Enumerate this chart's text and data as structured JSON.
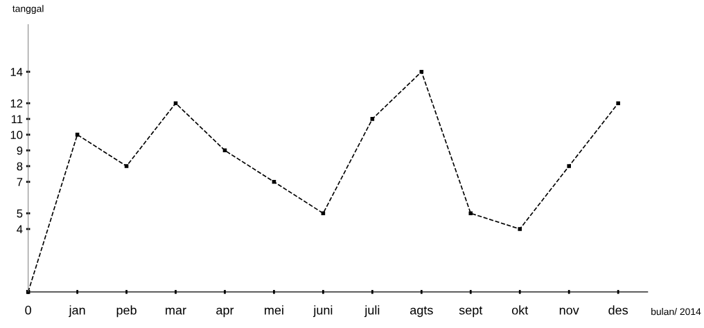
{
  "chart_data": {
    "type": "line",
    "xlabel": "bulan/ 2014",
    "ylabel": "tanggal",
    "categories": [
      "0",
      "jan",
      "peb",
      "mar",
      "apr",
      "mei",
      "juni",
      "juli",
      "agts",
      "sept",
      "okt",
      "nov",
      "des"
    ],
    "series": [
      {
        "color": "#000000",
        "values": [
          0,
          10,
          8,
          12,
          9,
          7,
          5,
          11,
          14,
          5,
          4,
          8,
          12
        ]
      }
    ],
    "ylim": [
      0,
      17
    ],
    "yticks": [
      4,
      5,
      7,
      8,
      9,
      10,
      11,
      12,
      14
    ],
    "marker": "square",
    "line_style": "dashed",
    "grid": false,
    "legend": false
  }
}
